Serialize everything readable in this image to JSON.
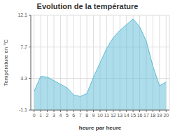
{
  "chart_data": {
    "type": "area",
    "title": "Evolution de la température",
    "xlabel": "heure par heure",
    "ylabel": "Température en °C",
    "x": [
      0,
      1,
      2,
      3,
      4,
      5,
      6,
      7,
      8,
      9,
      10,
      11,
      12,
      13,
      14,
      15,
      16,
      17,
      18,
      19,
      20
    ],
    "values": [
      1.5,
      3.6,
      3.5,
      3.0,
      2.5,
      2.0,
      1.0,
      0.8,
      1.2,
      3.5,
      5.5,
      7.5,
      9.0,
      10.0,
      10.8,
      11.6,
      10.5,
      8.5,
      5.0,
      2.3,
      2.8
    ],
    "xlim": [
      -0.5,
      20.5
    ],
    "xticks": [
      0,
      1,
      2,
      3,
      4,
      5,
      6,
      7,
      8,
      9,
      10,
      11,
      12,
      13,
      14,
      15,
      16,
      17,
      18,
      19,
      20
    ],
    "ylim": [
      -1.1,
      12.1
    ],
    "yticks": [
      -1.1,
      3.3,
      7.7,
      12.1
    ],
    "grid": true,
    "color": "#5bbcd6"
  }
}
